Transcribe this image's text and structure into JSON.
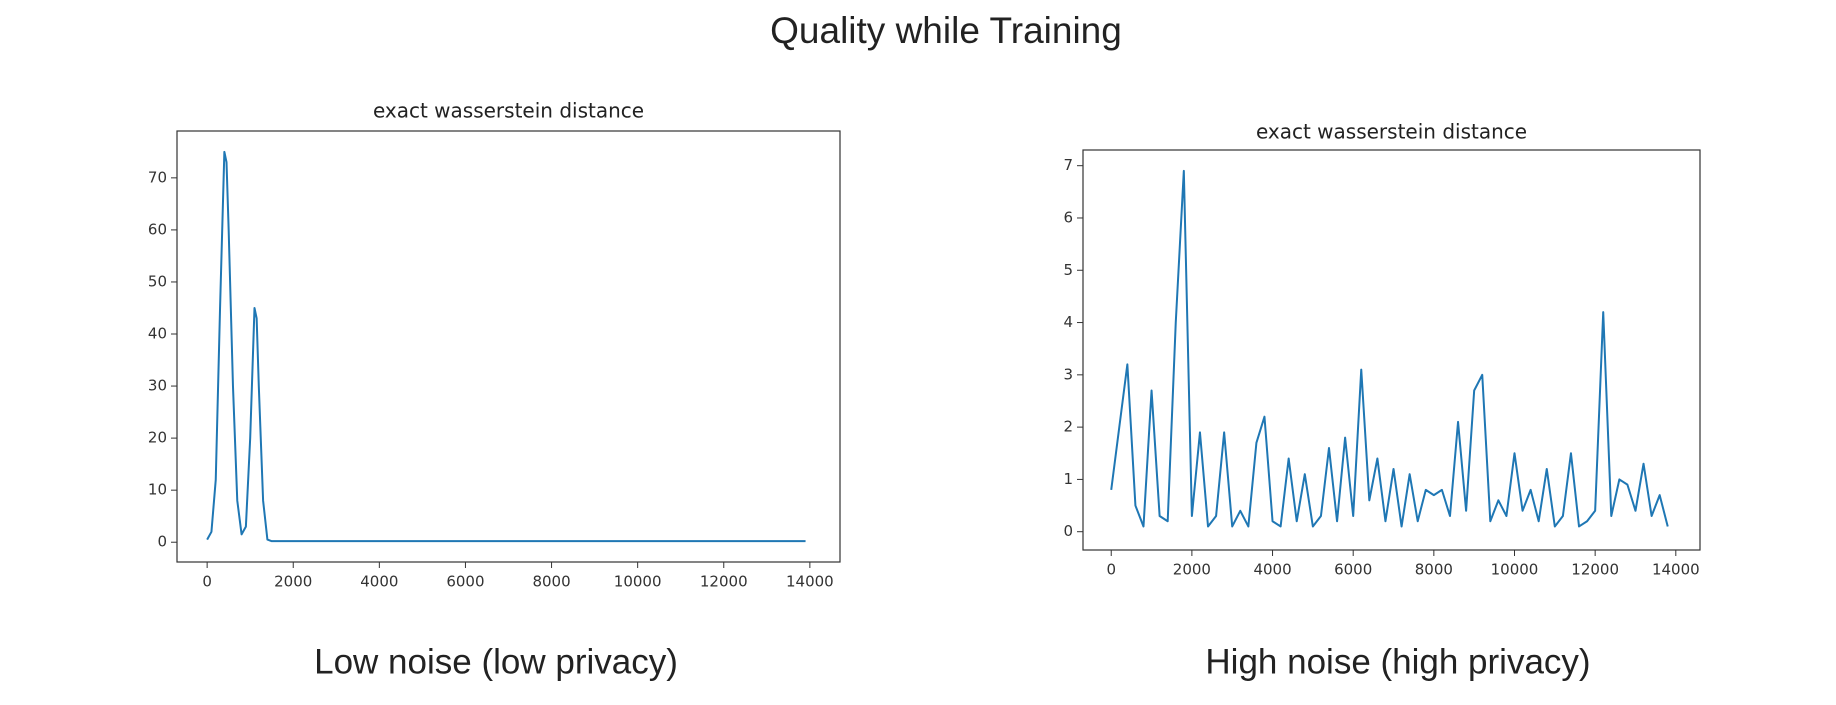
{
  "title": "Quality while Training",
  "chart_data": [
    {
      "type": "line",
      "title": "exact wasserstein distance",
      "caption": "Low noise (low privacy)",
      "x": [
        0,
        100,
        200,
        300,
        400,
        450,
        500,
        600,
        700,
        800,
        900,
        1000,
        1100,
        1150,
        1200,
        1300,
        1400,
        1500,
        13900
      ],
      "series": [
        {
          "color": "#1f77b4",
          "values": [
            0.5,
            2,
            12,
            45,
            75,
            73,
            60,
            30,
            8,
            1.5,
            3,
            20,
            45,
            43,
            30,
            8,
            0.5,
            0.2,
            0.2
          ]
        }
      ],
      "xlim": [
        -700,
        14700
      ],
      "ylim": [
        -3.8,
        79
      ],
      "xticks": [
        0,
        2000,
        4000,
        6000,
        8000,
        10000,
        12000,
        14000
      ],
      "yticks": [
        0,
        10,
        20,
        30,
        40,
        50,
        60,
        70
      ]
    },
    {
      "type": "line",
      "title": "exact wasserstein distance",
      "caption": "High noise (high privacy)",
      "x": [
        0,
        200,
        400,
        600,
        800,
        1000,
        1200,
        1400,
        1600,
        1800,
        2000,
        2200,
        2400,
        2600,
        2800,
        3000,
        3200,
        3400,
        3600,
        3800,
        4000,
        4200,
        4400,
        4600,
        4800,
        5000,
        5200,
        5400,
        5600,
        5800,
        6000,
        6200,
        6400,
        6600,
        6800,
        7000,
        7200,
        7400,
        7600,
        7800,
        8000,
        8200,
        8400,
        8600,
        8800,
        9000,
        9200,
        9400,
        9600,
        9800,
        10000,
        10200,
        10400,
        10600,
        10800,
        11000,
        11200,
        11400,
        11600,
        11800,
        12000,
        12200,
        12400,
        12600,
        12800,
        13000,
        13200,
        13400,
        13600,
        13800
      ],
      "series": [
        {
          "color": "#1f77b4",
          "values": [
            0.8,
            2.0,
            3.2,
            0.5,
            0.1,
            2.7,
            0.3,
            0.2,
            4.0,
            6.9,
            0.3,
            1.9,
            0.1,
            0.3,
            1.9,
            0.1,
            0.4,
            0.1,
            1.7,
            2.2,
            0.2,
            0.1,
            1.4,
            0.2,
            1.1,
            0.1,
            0.3,
            1.6,
            0.2,
            1.8,
            0.3,
            3.1,
            0.6,
            1.4,
            0.2,
            1.2,
            0.1,
            1.1,
            0.2,
            0.8,
            0.7,
            0.8,
            0.3,
            2.1,
            0.4,
            2.7,
            3.0,
            0.2,
            0.6,
            0.3,
            1.5,
            0.4,
            0.8,
            0.2,
            1.2,
            0.1,
            0.3,
            1.5,
            0.1,
            0.2,
            0.4,
            4.2,
            0.3,
            1.0,
            0.9,
            0.4,
            1.3,
            0.3,
            0.7,
            0.1
          ]
        }
      ],
      "xlim": [
        -700,
        14600
      ],
      "ylim": [
        -0.35,
        7.3
      ],
      "xticks": [
        0,
        2000,
        4000,
        6000,
        8000,
        10000,
        12000,
        14000
      ],
      "yticks": [
        0,
        1,
        2,
        3,
        4,
        5,
        6,
        7
      ]
    }
  ]
}
